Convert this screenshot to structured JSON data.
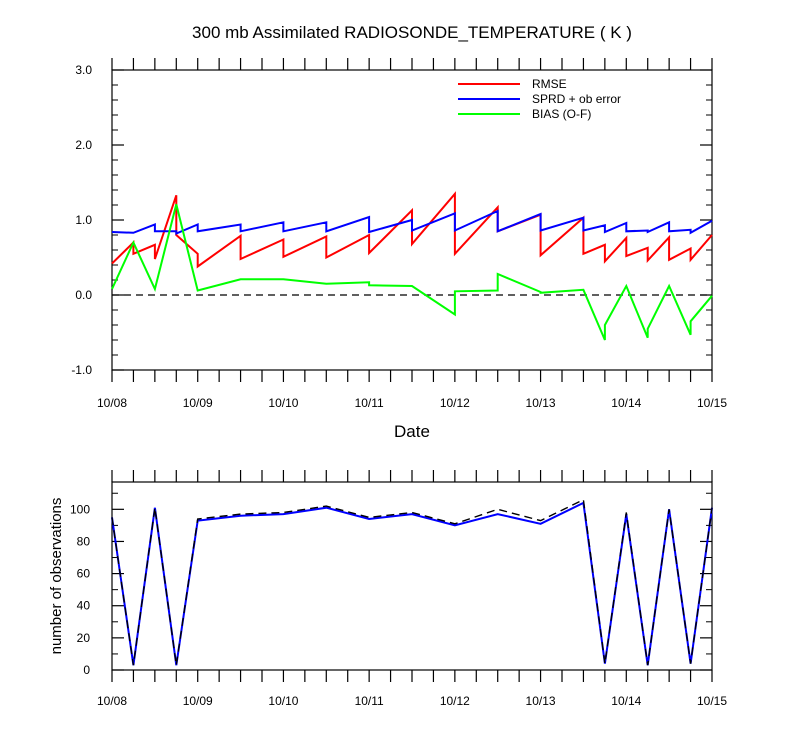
{
  "chart_data": [
    {
      "type": "line",
      "title": "300 mb Assimilated RADIOSONDE_TEMPERATURE ( K )",
      "xlabel": "Date",
      "ylabel": "",
      "xlim": [
        0,
        7
      ],
      "ylim": [
        -1.0,
        3.0
      ],
      "x_tick_labels": [
        "10/08",
        "10/09",
        "10/10",
        "10/11",
        "10/12",
        "10/13",
        "10/14",
        "10/15"
      ],
      "y_tick_labels": [
        "-1.0",
        "0.0",
        "1.0",
        "2.0",
        "3.0"
      ],
      "y_ticks": [
        -1.0,
        0.0,
        1.0,
        2.0,
        3.0
      ],
      "reference_line": 0.0,
      "legend": [
        "RMSE",
        "SPRD + ob error",
        "BIAS (O-F)"
      ],
      "legend_location": "top-right",
      "series": [
        {
          "name": "RMSE",
          "color": "#ff0000",
          "x": [
            0,
            0.25,
            0.25,
            0.5,
            0.5,
            0.75,
            0.75,
            1.0,
            1.0,
            1.5,
            1.5,
            2.0,
            2.0,
            2.5,
            2.5,
            3.0,
            3.0,
            3.5,
            3.5,
            4.0,
            4.0,
            4.5,
            4.5,
            5.0,
            5.0,
            5.5,
            5.5,
            5.75,
            5.75,
            6.0,
            6.0,
            6.25,
            6.25,
            6.5,
            6.5,
            6.75,
            6.75,
            7.0
          ],
          "values": [
            0.42,
            0.7,
            0.55,
            0.67,
            0.48,
            1.33,
            0.8,
            0.55,
            0.38,
            0.79,
            0.48,
            0.74,
            0.51,
            0.78,
            0.5,
            0.8,
            0.56,
            1.13,
            0.68,
            1.35,
            0.55,
            1.17,
            0.85,
            1.07,
            0.53,
            1.03,
            0.55,
            0.67,
            0.45,
            0.76,
            0.52,
            0.63,
            0.46,
            0.77,
            0.47,
            0.62,
            0.47,
            0.8
          ]
        },
        {
          "name": "SPRD + ob error",
          "color": "#0000ff",
          "x": [
            0,
            0.25,
            0.5,
            0.5,
            0.75,
            0.75,
            1.0,
            1.0,
            1.5,
            1.5,
            2.0,
            2.0,
            2.5,
            2.5,
            3.0,
            3.0,
            3.5,
            3.5,
            4.0,
            4.0,
            4.5,
            4.5,
            5.0,
            5.0,
            5.5,
            5.5,
            5.75,
            5.75,
            6.0,
            6.0,
            6.25,
            6.25,
            6.5,
            6.5,
            6.75,
            6.75,
            7.0
          ],
          "values": [
            0.84,
            0.83,
            0.94,
            0.85,
            0.85,
            0.82,
            0.94,
            0.85,
            0.94,
            0.85,
            0.97,
            0.85,
            0.97,
            0.85,
            1.04,
            0.84,
            1.0,
            0.86,
            1.09,
            0.86,
            1.12,
            0.85,
            1.08,
            0.86,
            1.03,
            0.86,
            0.93,
            0.84,
            0.96,
            0.85,
            0.86,
            0.84,
            0.97,
            0.85,
            0.87,
            0.83,
            0.99
          ]
        },
        {
          "name": "BIAS (O-F)",
          "color": "#00ff00",
          "x": [
            0,
            0.25,
            0.5,
            0.75,
            1.0,
            1.5,
            2.0,
            2.5,
            3.0,
            3.0,
            3.5,
            4.0,
            4.0,
            4.5,
            4.5,
            5.0,
            5.0,
            5.5,
            5.75,
            5.75,
            6.0,
            6.25,
            6.25,
            6.5,
            6.75,
            6.75,
            7.0
          ],
          "values": [
            0.08,
            0.7,
            0.08,
            1.21,
            0.06,
            0.21,
            0.21,
            0.15,
            0.17,
            0.13,
            0.12,
            -0.26,
            0.05,
            0.06,
            0.28,
            0.04,
            0.03,
            0.07,
            -0.6,
            -0.4,
            0.12,
            -0.57,
            -0.45,
            0.12,
            -0.53,
            -0.35,
            -0.01
          ]
        }
      ]
    },
    {
      "type": "line",
      "title": "",
      "xlabel": "",
      "ylabel": "number of observations",
      "xlim": [
        0,
        7
      ],
      "ylim": [
        0,
        117
      ],
      "x_tick_labels": [
        "10/08",
        "10/09",
        "10/10",
        "10/11",
        "10/12",
        "10/13",
        "10/14",
        "10/15"
      ],
      "y_tick_labels": [
        "0",
        "20",
        "40",
        "60",
        "80",
        "100"
      ],
      "y_ticks": [
        0,
        20,
        40,
        60,
        80,
        100
      ],
      "series": [
        {
          "name": "observations (solid)",
          "color": "#0000ff",
          "x": [
            0,
            0.25,
            0.5,
            0.75,
            1.0,
            1.5,
            2.0,
            2.5,
            3.0,
            3.5,
            4.0,
            4.5,
            5.0,
            5.5,
            5.75,
            6.0,
            6.25,
            6.5,
            6.75,
            7.0
          ],
          "values": [
            95,
            3,
            101,
            3,
            93,
            96,
            97,
            101,
            94,
            97,
            90,
            97,
            91,
            104,
            4,
            97,
            3,
            100,
            4,
            101
          ]
        },
        {
          "name": "observations (dashed)",
          "color": "#000000",
          "x": [
            0,
            0.25,
            0.5,
            0.75,
            1.0,
            1.5,
            2.0,
            2.5,
            3.0,
            3.5,
            4.0,
            4.5,
            5.0,
            5.5,
            5.75,
            6.0,
            6.25,
            6.5,
            6.75,
            7.0
          ],
          "values": [
            95,
            3,
            101,
            3,
            94,
            97,
            98,
            102,
            95,
            98,
            91,
            100,
            93,
            106,
            4,
            98,
            3,
            100,
            4,
            101
          ]
        }
      ]
    }
  ]
}
